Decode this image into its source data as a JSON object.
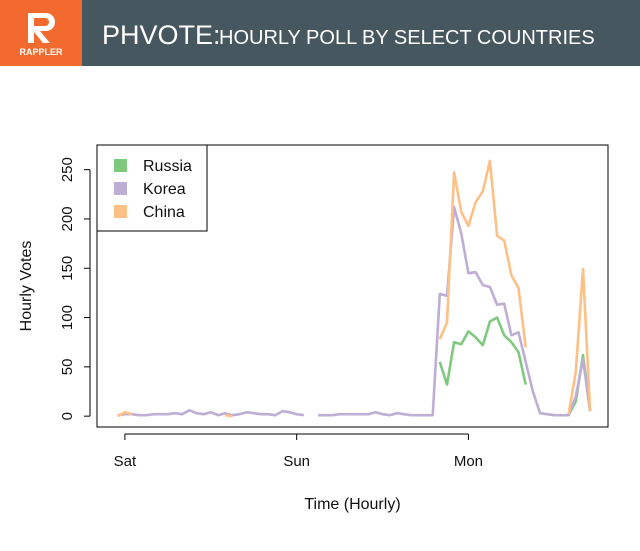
{
  "header": {
    "brand": "RAPPLER",
    "tag": "PHVOTE:",
    "title": "HOURLY POLL BY SELECT COUNTRIES"
  },
  "chart_data": {
    "type": "line",
    "xlabel": "Time (Hourly)",
    "ylabel": "Hourly Votes",
    "x": [
      -1,
      0,
      1,
      2,
      3,
      4,
      5,
      6,
      7,
      8,
      9,
      10,
      11,
      12,
      13,
      14,
      15,
      16,
      17,
      18,
      19,
      20,
      21,
      22,
      23,
      24,
      25,
      26,
      27,
      28,
      29,
      30,
      31,
      32,
      33,
      34,
      35,
      36,
      37,
      38,
      39,
      40,
      41,
      42,
      43,
      44,
      45,
      46,
      47,
      48,
      49,
      50,
      51,
      52,
      53,
      54,
      55,
      56,
      57,
      58,
      59,
      60,
      61,
      62,
      63,
      64,
      65
    ],
    "series": [
      {
        "name": "Russia",
        "color": "#7fc97f",
        "values": [
          null,
          null,
          null,
          null,
          null,
          null,
          null,
          null,
          null,
          null,
          null,
          null,
          null,
          null,
          null,
          null,
          null,
          null,
          null,
          null,
          null,
          null,
          null,
          null,
          null,
          null,
          null,
          null,
          null,
          null,
          null,
          null,
          null,
          null,
          null,
          null,
          null,
          null,
          null,
          null,
          null,
          null,
          null,
          null,
          null,
          55,
          32,
          75,
          73,
          86,
          80,
          72,
          96,
          100,
          82,
          75,
          65,
          32,
          null,
          null,
          null,
          null,
          null,
          1,
          15,
          62,
          5
        ]
      },
      {
        "name": "Korea",
        "color": "#beaed4",
        "values": [
          1,
          2,
          2,
          1,
          1,
          2,
          2,
          2,
          3,
          2,
          6,
          3,
          2,
          4,
          1,
          3,
          1,
          2,
          4,
          3,
          2,
          2,
          1,
          5,
          4,
          2,
          1,
          null,
          1,
          1,
          1,
          2,
          2,
          2,
          2,
          2,
          4,
          2,
          1,
          3,
          2,
          1,
          1,
          1,
          1,
          124,
          122,
          212,
          185,
          145,
          146,
          133,
          131,
          113,
          114,
          82,
          85,
          55,
          25,
          3,
          2,
          1,
          1,
          1,
          20,
          58,
          5
        ]
      },
      {
        "name": "China",
        "color": "#fdc086",
        "values": [
          0,
          4,
          2,
          null,
          null,
          null,
          null,
          null,
          null,
          null,
          null,
          null,
          null,
          null,
          null,
          1,
          0,
          null,
          null,
          null,
          null,
          null,
          null,
          null,
          null,
          null,
          null,
          null,
          null,
          null,
          null,
          null,
          null,
          null,
          null,
          null,
          null,
          null,
          null,
          null,
          null,
          null,
          null,
          null,
          null,
          78,
          95,
          247,
          207,
          193,
          217,
          228,
          259,
          183,
          178,
          143,
          130,
          70,
          null,
          null,
          null,
          null,
          null,
          2,
          45,
          149,
          5
        ]
      }
    ],
    "xlim": [
      -3.9,
      67.5
    ],
    "xticks": [
      {
        "value": 0,
        "label": "Sat"
      },
      {
        "value": 24,
        "label": "Sun"
      },
      {
        "value": 48,
        "label": "Mon"
      }
    ],
    "ylim": [
      -11,
      275
    ],
    "yticks": [
      0,
      50,
      100,
      150,
      200,
      250
    ],
    "legend": "top-left"
  }
}
